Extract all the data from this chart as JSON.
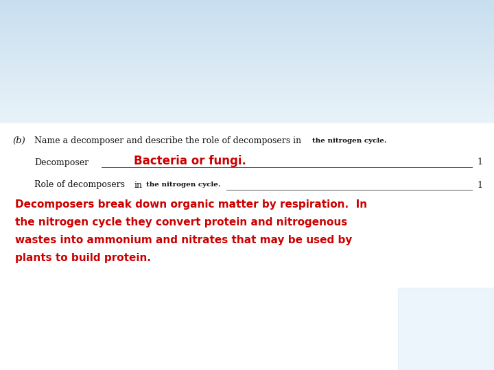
{
  "bg_sky_color": "#c8dff0",
  "bg_white_color": "#ffffff",
  "question_label": "(b)",
  "question_text": "Name a decomposer and describe the role of decomposers in",
  "question_text_small": "the nitrogen cycle.",
  "decomposer_label": "Decomposer",
  "answer1_text": "Bacteria or fungi.",
  "answer1_color": "#cc0000",
  "role_label": "Role of decomposers",
  "role_label_in": "in",
  "role_label_small": "the nitrogen cycle.",
  "answer2_lines": [
    "Decomposers break down organic matter by respiration.  In",
    "the nitrogen cycle they convert protein and nitrogenous",
    "wastes into ammonium and nitrates that may be used by",
    "plants to build protein."
  ],
  "answer2_color": "#cc0000",
  "mark1": "1",
  "mark2": "1",
  "line_color": "#555555",
  "text_color": "#111111",
  "fig_width": 7.2,
  "fig_height": 5.4,
  "dpi": 100
}
